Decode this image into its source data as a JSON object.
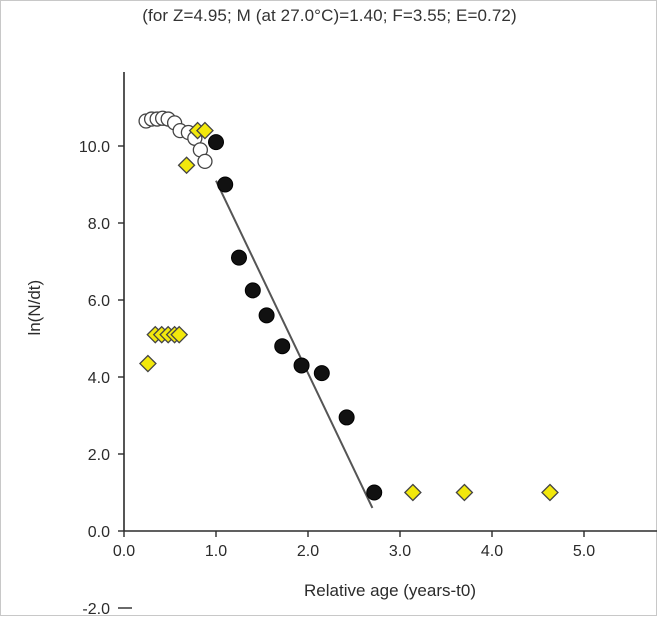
{
  "chart_data": {
    "type": "scatter",
    "subtitle": "(for Z=4.95; M (at 27.0°C)=1.40; F=3.55; E=0.72)",
    "xlabel": "Relative age (years-t0)",
    "ylabel": "ln(N/dt)",
    "xlim": [
      0,
      5.8
    ],
    "ylim": [
      -2.2,
      11.8
    ],
    "x_ticks": [
      "0.0",
      "1.0",
      "2.0",
      "3.0",
      "4.0",
      "5.0"
    ],
    "y_ticks": [
      "-2.0",
      "0.0",
      "2.0",
      "4.0",
      "6.0",
      "8.0",
      "10.0"
    ],
    "grid": false,
    "series": [
      {
        "marker": "filled-black-circle",
        "color": "#111111",
        "points": [
          [
            1.0,
            10.1
          ],
          [
            1.1,
            9.0
          ],
          [
            1.25,
            7.1
          ],
          [
            1.4,
            6.25
          ],
          [
            1.55,
            5.6
          ],
          [
            1.72,
            4.8
          ],
          [
            1.93,
            4.3
          ],
          [
            2.15,
            4.1
          ],
          [
            2.42,
            2.95
          ],
          [
            2.72,
            1.0
          ]
        ]
      },
      {
        "marker": "open-circle",
        "color": "#ffffff",
        "points": [
          [
            0.24,
            10.65
          ],
          [
            0.3,
            10.7
          ],
          [
            0.36,
            10.7
          ],
          [
            0.42,
            10.72
          ],
          [
            0.48,
            10.7
          ],
          [
            0.55,
            10.6
          ],
          [
            0.61,
            10.4
          ],
          [
            0.7,
            10.35
          ],
          [
            0.77,
            10.2
          ],
          [
            0.83,
            9.9
          ],
          [
            0.88,
            9.6
          ]
        ]
      },
      {
        "marker": "yellow-diamond",
        "color": "#f2e80c",
        "points": [
          [
            0.26,
            4.35
          ],
          [
            0.34,
            5.1
          ],
          [
            0.41,
            5.1
          ],
          [
            0.48,
            5.1
          ],
          [
            0.55,
            5.1
          ],
          [
            0.6,
            5.1
          ],
          [
            0.68,
            9.5
          ],
          [
            0.8,
            10.4
          ],
          [
            0.88,
            10.4
          ],
          [
            3.14,
            1.0
          ],
          [
            3.7,
            1.0
          ],
          [
            4.63,
            1.0
          ]
        ]
      }
    ],
    "regression_line": [
      [
        1.0,
        9.1
      ],
      [
        2.7,
        0.6
      ]
    ]
  }
}
